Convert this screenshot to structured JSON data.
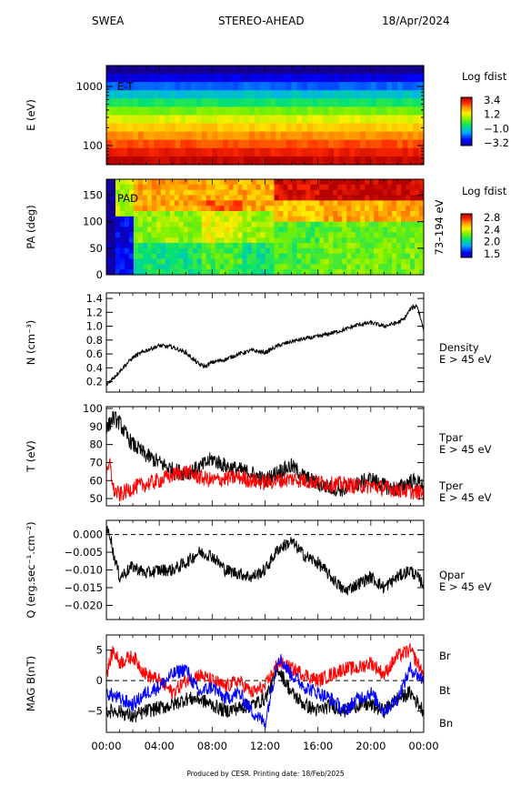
{
  "header": {
    "instrument": "SWEA",
    "spacecraft": "STEREO-AHEAD",
    "date": "18/Apr/2024"
  },
  "footer": "Produced by CESR.   Printing date: 18/Feb/2025",
  "x_axis": {
    "ticks": [
      "00:00",
      "04:00",
      "08:00",
      "12:00",
      "16:00",
      "20:00",
      "00:00"
    ],
    "range_hours": [
      0,
      24
    ]
  },
  "chart_data": [
    {
      "type": "heatmap",
      "panel_label": "E-T",
      "ylabel": "E (eV)",
      "y_scale": "log",
      "y_ticks": [
        "100",
        "1000"
      ],
      "colorbar": {
        "title": "Log fdist",
        "ticks": [
          "3.4",
          "1.2",
          "−1.0",
          "−3.2"
        ],
        "range": [
          -3.2,
          3.4
        ]
      },
      "energy_bands_eV": [
        2000,
        1420,
        1000,
        720,
        520,
        370,
        270,
        190,
        140,
        100,
        72,
        52
      ],
      "band_values": [
        -3.3,
        -2.6,
        -1.8,
        -1.0,
        -0.3,
        0.4,
        1.1,
        1.6,
        2.1,
        2.5,
        2.9,
        3.3
      ]
    },
    {
      "type": "heatmap",
      "panel_label": "PAD",
      "ylabel": "PA (deg)",
      "y_ticks": [
        "0",
        "50",
        "100",
        "150"
      ],
      "y_range": [
        0,
        180
      ],
      "right_label": "73–194 eV",
      "colorbar": {
        "title": "Log fdist",
        "ticks": [
          "2.8",
          "2.4",
          "2.0",
          "1.5"
        ],
        "range": [
          1.5,
          2.8
        ]
      }
    },
    {
      "type": "line",
      "ylabel": "N (cm⁻³)",
      "y_ticks": [
        "0.2",
        "0.4",
        "0.6",
        "0.8",
        "1.0",
        "1.2",
        "1.4"
      ],
      "ylim": [
        0.05,
        1.48
      ],
      "series": [
        {
          "name": "Density",
          "sublabel": "E > 45 eV",
          "color": "#000000",
          "x": [
            0,
            0.5,
            1,
            2,
            3,
            4,
            5,
            6,
            7,
            7.5,
            8,
            9,
            10,
            11,
            12,
            13,
            14,
            15,
            16,
            17,
            18,
            19,
            20,
            21,
            22,
            22.5,
            23,
            23.5,
            24
          ],
          "y": [
            0.15,
            0.25,
            0.35,
            0.55,
            0.65,
            0.72,
            0.7,
            0.62,
            0.45,
            0.42,
            0.48,
            0.52,
            0.6,
            0.65,
            0.62,
            0.72,
            0.78,
            0.82,
            0.85,
            0.9,
            0.95,
            1.02,
            1.05,
            1.0,
            1.05,
            1.1,
            1.25,
            1.3,
            0.95
          ]
        }
      ]
    },
    {
      "type": "line",
      "ylabel": "T (eV)",
      "y_ticks": [
        "50",
        "60",
        "70",
        "80",
        "90",
        "100"
      ],
      "ylim": [
        46,
        101
      ],
      "series": [
        {
          "name": "Tpar",
          "sublabel": "E > 45 eV",
          "color": "#000000",
          "x": [
            0,
            0.5,
            1,
            1.5,
            2,
            3,
            4,
            5,
            6,
            7,
            8,
            9,
            10,
            11,
            12,
            13,
            14,
            15,
            16,
            17,
            18,
            19,
            20,
            21,
            22,
            23,
            24
          ],
          "y": [
            88,
            95,
            92,
            85,
            80,
            74,
            70,
            66,
            64,
            67,
            72,
            68,
            66,
            64,
            60,
            65,
            68,
            62,
            58,
            56,
            55,
            58,
            61,
            57,
            55,
            60,
            58
          ]
        },
        {
          "name": "Tper",
          "sublabel": "E > 45 eV",
          "color": "#ff0000",
          "x": [
            0,
            0.3,
            0.5,
            1,
            2,
            3,
            4,
            5,
            6,
            7,
            8,
            9,
            10,
            11,
            12,
            13,
            14,
            15,
            16,
            17,
            18,
            19,
            20,
            21,
            22,
            23,
            24
          ],
          "y": [
            62,
            70,
            55,
            52,
            56,
            58,
            60,
            63,
            65,
            62,
            60,
            61,
            62,
            60,
            59,
            60,
            61,
            60,
            59,
            58,
            58,
            57,
            57,
            56,
            55,
            54,
            53
          ]
        }
      ]
    },
    {
      "type": "line",
      "ylabel": "Q (erg.sec⁻¹.cm⁻²)",
      "y_ticks": [
        "0.000",
        "−0.005",
        "−0.010",
        "−0.015",
        "−0.020"
      ],
      "ylim": [
        -0.024,
        0.004
      ],
      "zero_line": true,
      "series": [
        {
          "name": "Qpar",
          "sublabel": "E > 45 eV",
          "color": "#000000",
          "x": [
            0,
            0.3,
            0.5,
            1,
            2,
            3,
            4,
            5,
            6,
            7,
            8,
            9,
            10,
            11,
            12,
            13,
            14,
            15,
            16,
            17,
            18,
            19,
            20,
            21,
            22,
            23,
            24
          ],
          "y": [
            0.001,
            0.0,
            -0.005,
            -0.012,
            -0.009,
            -0.011,
            -0.01,
            -0.01,
            -0.008,
            -0.005,
            -0.006,
            -0.01,
            -0.011,
            -0.012,
            -0.01,
            -0.004,
            -0.002,
            -0.006,
            -0.008,
            -0.012,
            -0.016,
            -0.014,
            -0.012,
            -0.015,
            -0.012,
            -0.01,
            -0.014
          ]
        }
      ]
    },
    {
      "type": "line",
      "ylabel": "MAG B(nT)",
      "y_ticks": [
        "5",
        "0",
        "−5"
      ],
      "ylim": [
        -8.5,
        7.5
      ],
      "zero_line": true,
      "series": [
        {
          "name": "Br",
          "color": "#000000",
          "x": [
            0,
            1,
            2,
            3,
            4,
            5,
            6,
            7,
            8,
            9,
            10,
            11,
            12,
            13,
            14,
            15,
            16,
            17,
            18,
            19,
            20,
            21,
            22,
            23,
            24
          ],
          "y": [
            -5,
            -5,
            -6,
            -5,
            -4.5,
            -4,
            -3,
            -3,
            -4,
            -5,
            -4.5,
            -4,
            -3,
            2,
            -2,
            -4,
            -5,
            -4,
            -5,
            -4,
            -4,
            -5,
            -3,
            -2,
            -5
          ]
        },
        {
          "name": "Bt",
          "color": "#ff0000",
          "x": [
            0,
            0.5,
            1,
            2,
            3,
            4,
            5,
            6,
            7,
            8,
            9,
            10,
            11,
            12,
            13,
            14,
            15,
            16,
            17,
            18,
            19,
            20,
            21,
            22,
            23,
            24
          ],
          "y": [
            1,
            5,
            3,
            4,
            1,
            0,
            -2,
            0,
            1,
            0,
            -1,
            0,
            -2,
            -1,
            3,
            2,
            1,
            0,
            1,
            2,
            2,
            3,
            1,
            4,
            5,
            1
          ]
        },
        {
          "name": "Bn",
          "color": "#0000ff",
          "x": [
            0,
            1,
            2,
            3,
            4,
            5,
            6,
            7,
            8,
            9,
            10,
            11,
            12,
            13,
            14,
            15,
            16,
            17,
            18,
            19,
            20,
            21,
            22,
            23,
            24
          ],
          "y": [
            -2,
            -3,
            -4,
            -2,
            -1,
            1,
            2,
            -2,
            -1,
            -3,
            -2,
            -5,
            -7,
            4,
            1,
            -1,
            -2,
            -3,
            -5,
            -3,
            -2,
            -5,
            -3,
            2,
            0
          ]
        }
      ]
    }
  ]
}
